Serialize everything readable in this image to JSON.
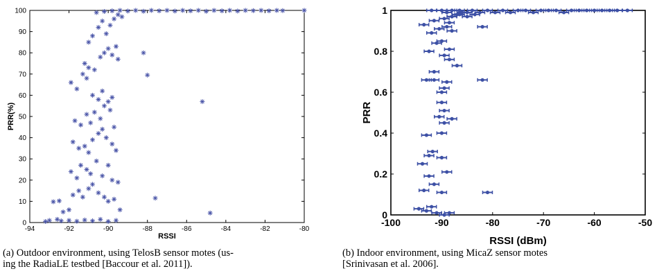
{
  "chart_data": [
    {
      "type": "scatter",
      "marker": "plus",
      "color": "#4a55a8",
      "xlabel": "RSSI",
      "ylabel": "PRR(%)",
      "xlim": [
        -94,
        -80
      ],
      "ylim": [
        0,
        100
      ],
      "xticks": [
        -94,
        -92,
        -90,
        -88,
        -86,
        -84,
        -82,
        -80
      ],
      "yticks": [
        0,
        10,
        20,
        30,
        40,
        50,
        60,
        70,
        80,
        90,
        100
      ],
      "xtick_labels": [
        "-94",
        "-92",
        "-90",
        "-88",
        "-86",
        "-84",
        "-82",
        "-80"
      ],
      "ytick_labels": [
        "0",
        "10",
        "20",
        "30",
        "40",
        "50",
        "60",
        "70",
        "80",
        "90",
        "100"
      ],
      "grid": false,
      "caption": [
        "(a) Outdoor environment, using TelosB sensor motes (us-",
        "ing the RadiaLE testbed [Baccour et al. 2011])."
      ],
      "points": [
        [
          -93.2,
          0.5
        ],
        [
          -93.0,
          1.0
        ],
        [
          -92.6,
          1.5
        ],
        [
          -92.4,
          0.8
        ],
        [
          -92.0,
          1.0
        ],
        [
          -91.6,
          0.6
        ],
        [
          -91.2,
          1.2
        ],
        [
          -90.8,
          0.8
        ],
        [
          -90.4,
          1.5
        ],
        [
          -90.0,
          0.5
        ],
        [
          -89.6,
          1.0
        ],
        [
          -92.8,
          9.8
        ],
        [
          -92.5,
          10.2
        ],
        [
          -92.3,
          5.0
        ],
        [
          -92.0,
          6.0
        ],
        [
          -91.8,
          13.0
        ],
        [
          -91.5,
          15.0
        ],
        [
          -91.3,
          12.0
        ],
        [
          -91.0,
          16.0
        ],
        [
          -90.8,
          18.0
        ],
        [
          -90.5,
          14.0
        ],
        [
          -90.2,
          12.0
        ],
        [
          -90.0,
          10.0
        ],
        [
          -89.7,
          11.0
        ],
        [
          -89.4,
          6.0
        ],
        [
          -91.9,
          24.0
        ],
        [
          -91.6,
          21.0
        ],
        [
          -91.4,
          27.0
        ],
        [
          -91.1,
          25.0
        ],
        [
          -90.9,
          23.0
        ],
        [
          -90.6,
          29.0
        ],
        [
          -90.3,
          22.0
        ],
        [
          -90.0,
          27.0
        ],
        [
          -89.8,
          20.0
        ],
        [
          -89.5,
          19.0
        ],
        [
          -91.8,
          38.0
        ],
        [
          -91.5,
          35.0
        ],
        [
          -91.2,
          36.0
        ],
        [
          -91.0,
          33.0
        ],
        [
          -90.8,
          39.0
        ],
        [
          -90.5,
          42.0
        ],
        [
          -90.3,
          44.0
        ],
        [
          -90.1,
          40.0
        ],
        [
          -89.8,
          37.0
        ],
        [
          -89.6,
          34.0
        ],
        [
          -91.7,
          48.0
        ],
        [
          -91.4,
          46.0
        ],
        [
          -91.1,
          51.0
        ],
        [
          -90.9,
          47.0
        ],
        [
          -90.7,
          52.0
        ],
        [
          -90.4,
          49.0
        ],
        [
          -90.2,
          55.0
        ],
        [
          -89.9,
          53.0
        ],
        [
          -89.7,
          45.0
        ],
        [
          -91.9,
          66.0
        ],
        [
          -91.6,
          63.0
        ],
        [
          -91.3,
          70.0
        ],
        [
          -91.1,
          68.0
        ],
        [
          -90.8,
          60.0
        ],
        [
          -90.5,
          58.0
        ],
        [
          -90.3,
          62.0
        ],
        [
          -90.0,
          57.0
        ],
        [
          -89.8,
          59.0
        ],
        [
          -91.2,
          75.0
        ],
        [
          -91.0,
          73.0
        ],
        [
          -90.7,
          72.0
        ],
        [
          -90.4,
          78.0
        ],
        [
          -90.2,
          80.0
        ],
        [
          -90.0,
          82.0
        ],
        [
          -89.8,
          79.0
        ],
        [
          -89.6,
          83.0
        ],
        [
          -89.5,
          77.0
        ],
        [
          -91.0,
          85.0
        ],
        [
          -90.8,
          88.0
        ],
        [
          -90.5,
          92.0
        ],
        [
          -90.3,
          95.0
        ],
        [
          -90.1,
          89.0
        ],
        [
          -89.9,
          93.0
        ],
        [
          -89.7,
          96.0
        ],
        [
          -89.5,
          98.0
        ],
        [
          -89.3,
          97.0
        ],
        [
          -90.6,
          99.0
        ],
        [
          -90.2,
          99.5
        ],
        [
          -89.8,
          99.8
        ],
        [
          -89.4,
          100.0
        ],
        [
          -89.0,
          99.7
        ],
        [
          -88.6,
          100.0
        ],
        [
          -88.2,
          99.6
        ],
        [
          -87.8,
          100.0
        ],
        [
          -87.4,
          99.8
        ],
        [
          -87.0,
          100.0
        ],
        [
          -86.6,
          99.7
        ],
        [
          -86.2,
          100.0
        ],
        [
          -85.8,
          99.8
        ],
        [
          -85.4,
          100.0
        ],
        [
          -85.0,
          99.6
        ],
        [
          -84.6,
          100.0
        ],
        [
          -84.2,
          99.8
        ],
        [
          -83.8,
          100.0
        ],
        [
          -83.4,
          99.7
        ],
        [
          -83.0,
          100.0
        ],
        [
          -82.6,
          99.9
        ],
        [
          -82.2,
          100.0
        ],
        [
          -81.8,
          99.8
        ],
        [
          -81.4,
          100.0
        ],
        [
          -81.1,
          99.9
        ],
        [
          -80.0,
          100.0
        ],
        [
          -88.2,
          80.0
        ],
        [
          -88.0,
          69.5
        ],
        [
          -87.6,
          11.5
        ],
        [
          -85.2,
          57.0
        ],
        [
          -84.8,
          4.5
        ]
      ]
    },
    {
      "type": "scatter",
      "marker": "errorbar-dot",
      "color": "#3d50a5",
      "xlabel": "RSSI (dBm)",
      "ylabel": "PRR",
      "xlim": [
        -100,
        -50
      ],
      "ylim": [
        0,
        1
      ],
      "xticks": [
        -100,
        -90,
        -80,
        -70,
        -60,
        -50
      ],
      "yticks": [
        0,
        0.2,
        0.4,
        0.6,
        0.8,
        1
      ],
      "xtick_labels": [
        "-100",
        "-90",
        "-80",
        "-70",
        "-60",
        "-50"
      ],
      "ytick_labels": [
        "0",
        "0.2",
        "0.4",
        "0.6",
        "0.8",
        "1"
      ],
      "grid": false,
      "caption": [
        "(b) Indoor environment, using MicaZ sensor motes",
        "[Srinivasan et al. 2006]."
      ],
      "points": [
        [
          -94.5,
          0.03
        ],
        [
          -93.0,
          0.02
        ],
        [
          -91.0,
          0.01
        ],
        [
          -89.5,
          0.0
        ],
        [
          -88.5,
          0.01
        ],
        [
          -92.0,
          0.04
        ],
        [
          -93.5,
          0.12
        ],
        [
          -91.5,
          0.15
        ],
        [
          -90.0,
          0.11
        ],
        [
          -92.5,
          0.19
        ],
        [
          -89.0,
          0.21
        ],
        [
          -81.0,
          0.11
        ],
        [
          -93.8,
          0.25
        ],
        [
          -91.8,
          0.31
        ],
        [
          -92.5,
          0.29
        ],
        [
          -90.0,
          0.28
        ],
        [
          -93.0,
          0.39
        ],
        [
          -90.0,
          0.4
        ],
        [
          -89.5,
          0.45
        ],
        [
          -90.5,
          0.48
        ],
        [
          -89.5,
          0.51
        ],
        [
          -88.0,
          0.47
        ],
        [
          -90.0,
          0.55
        ],
        [
          -89.5,
          0.62
        ],
        [
          -89.0,
          0.65
        ],
        [
          -93.0,
          0.66
        ],
        [
          -91.5,
          0.66
        ],
        [
          -82.0,
          0.66
        ],
        [
          -90.0,
          0.6
        ],
        [
          -91.5,
          0.7
        ],
        [
          -87.0,
          0.73
        ],
        [
          -88.5,
          0.76
        ],
        [
          -89.5,
          0.78
        ],
        [
          -92.5,
          0.8
        ],
        [
          -91.0,
          0.84
        ],
        [
          -88.5,
          0.81
        ],
        [
          -90.0,
          0.85
        ],
        [
          -93.5,
          0.93
        ],
        [
          -92.0,
          0.89
        ],
        [
          -90.5,
          0.91
        ],
        [
          -89.0,
          0.92
        ],
        [
          -88.0,
          0.9
        ],
        [
          -91.5,
          0.95
        ],
        [
          -88.5,
          0.94
        ],
        [
          -89.5,
          0.96
        ],
        [
          -88.0,
          0.97
        ],
        [
          -87.0,
          0.98
        ],
        [
          -86.0,
          0.99
        ],
        [
          -92.0,
          1.0
        ],
        [
          -90.0,
          1.0
        ],
        [
          -89.0,
          0.99
        ],
        [
          -88.0,
          1.0
        ],
        [
          -86.5,
          1.0
        ],
        [
          -85.0,
          0.99
        ],
        [
          -84.0,
          1.0
        ],
        [
          -82.5,
          0.99
        ],
        [
          -81.0,
          1.0
        ],
        [
          -79.5,
          0.99
        ],
        [
          -78.0,
          1.0
        ],
        [
          -76.5,
          0.99
        ],
        [
          -75.0,
          1.0
        ],
        [
          -73.5,
          1.0
        ],
        [
          -72.0,
          0.99
        ],
        [
          -70.5,
          1.0
        ],
        [
          -69.0,
          1.0
        ],
        [
          -67.5,
          1.0
        ],
        [
          -66.0,
          0.99
        ],
        [
          -64.5,
          1.0
        ],
        [
          -63.0,
          1.0
        ],
        [
          -61.5,
          1.0
        ],
        [
          -60.0,
          1.0
        ],
        [
          -58.5,
          1.0
        ],
        [
          -57.0,
          1.0
        ],
        [
          -55.5,
          1.0
        ],
        [
          -53.5,
          1.0
        ],
        [
          -88.0,
          0.97
        ],
        [
          -86.5,
          0.98
        ],
        [
          -85.0,
          0.97
        ],
        [
          -83.5,
          0.98
        ],
        [
          -82.0,
          0.92
        ]
      ]
    }
  ]
}
